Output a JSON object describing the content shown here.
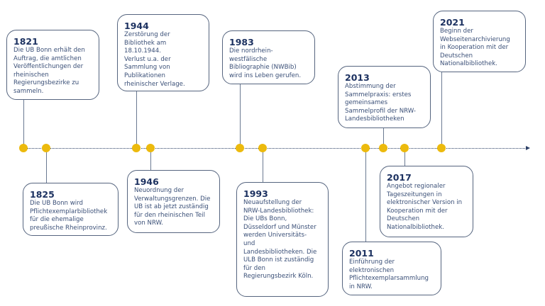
{
  "colors": {
    "dot": "#ecba0d",
    "text": "#1d3261",
    "border": "#56657f",
    "axis": "#2b3f66"
  },
  "events": [
    {
      "year": "1821",
      "text": "Die UB Bonn erhält den\nAuftrag, die amtlichen\nVeröffentlichungen der\nrheinischen\nRegierungsbezirke zu\nsammeln."
    },
    {
      "year": "1825",
      "text": "Die UB Bonn wird\nPflichtexemplarbibliothek\nfür die ehemalige\npreußische Rheinprovinz."
    },
    {
      "year": "1944",
      "text": "Zerstörung der\nBibliothek am 18.10.1944.\nVerlust u.a. der\nSammlung von\nPublikationen\nrheinischer Verlage."
    },
    {
      "year": "1946",
      "text": "Neuordnung der\nVerwaltungsgrenzen. Die\nUB ist ab jetzt zuständig\nfür den rheinischen Teil\nvon NRW."
    },
    {
      "year": "1983",
      "text": "Die nordrhein-\nwestfälische\nBibliographie (NWBib)\nwird ins Leben gerufen."
    },
    {
      "year": "1993",
      "text": "Neuaufstellung der\nNRW-Landesbibliothek:\nDie UBs Bonn,\nDüsseldorf und Münster\nwerden Universitäts-\nund\nLandesbibliotheken. Die\nULB Bonn ist zuständig\nfür den\nRegierungsbezirk Köln."
    },
    {
      "year": "2011",
      "text": "Einführung der\nelektronischen\nPflichtexemplarsammlung\nin NRW."
    },
    {
      "year": "2013",
      "text": "Abstimmung der\nSammelpraxis: erstes\ngemeinsames\nSammelprofil der NRW-\nLandesbibliotheken"
    },
    {
      "year": "2017",
      "text": "Angebot regionaler\nTageszeitungen in\nelektronischer Version in\nKooperation mit der\nDeutschen\nNationalbibliothek."
    },
    {
      "year": "2021",
      "text": "Beginn der\nWebseitenarchivierung\nin Kooperation mit der\nDeutschen\nNationalbibliothek."
    }
  ]
}
